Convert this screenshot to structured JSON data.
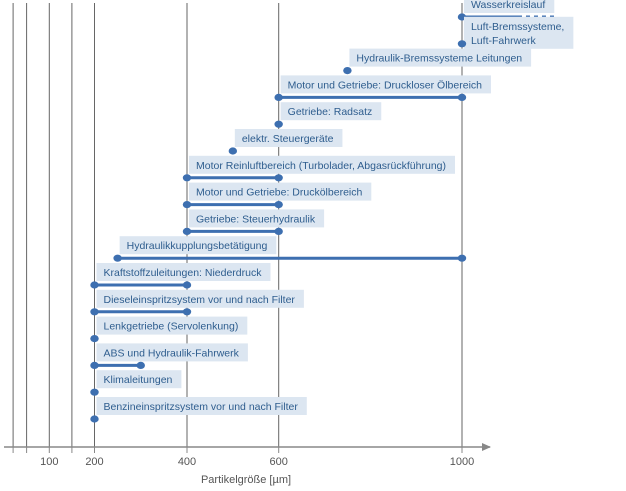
{
  "chart_data": {
    "type": "range-bar",
    "xlabel": "Partikelgröße [µm]",
    "ylabel": "",
    "xlim": [
      0,
      1050
    ],
    "x_ticks": [
      100,
      200,
      400,
      600,
      1000
    ],
    "gridlines_x": [
      20,
      50,
      100,
      150,
      200,
      400,
      600,
      1000
    ],
    "grid": true,
    "colors": {
      "bar": "#3d6fb0",
      "label_bg": "#dce6f1",
      "label_text": "#2e5d8e",
      "axis": "#888888",
      "grid": "#666666"
    },
    "ranges": [
      {
        "label": "Wasserkreislauf",
        "start": 1000,
        "end": 1200,
        "open_end": true
      },
      {
        "label": "Luft-Bremssysteme, Luft-Fahrwerk",
        "start": 1000,
        "end": 1000
      },
      {
        "label": "Hydraulik-Bremssysteme Leitungen",
        "start": 750,
        "end": 750
      },
      {
        "label": "Motor und Getriebe: Druckloser Ölbereich",
        "start": 600,
        "end": 1000
      },
      {
        "label": "Getriebe: Radsatz",
        "start": 600,
        "end": 600
      },
      {
        "label": "elektr. Steuergeräte",
        "start": 500,
        "end": 500
      },
      {
        "label": "Motor Reinluftbereich (Turbolader, Abgasrückführung)",
        "start": 400,
        "end": 600
      },
      {
        "label": "Motor und Getriebe: Druckölbereich",
        "start": 400,
        "end": 600
      },
      {
        "label": "Getriebe: Steuerhydraulik",
        "start": 400,
        "end": 600
      },
      {
        "label": "Hydraulikkupplungsbetätigung",
        "start": 250,
        "end": 1000
      },
      {
        "label": "Kraftstoffzuleitungen: Niederdruck",
        "start": 200,
        "end": 400
      },
      {
        "label": "Dieseleinspritzsystem vor und nach Filter",
        "start": 200,
        "end": 400
      },
      {
        "label": "Lenkgetriebe (Servolenkung)",
        "start": 200,
        "end": 200
      },
      {
        "label": "ABS und Hydraulik-Fahrwerk",
        "start": 200,
        "end": 300
      },
      {
        "label": "Klimaleitungen",
        "start": 200,
        "end": 200
      },
      {
        "label": "Benzineinspritzsystem vor und nach Filter",
        "start": 200,
        "end": 200
      }
    ]
  }
}
